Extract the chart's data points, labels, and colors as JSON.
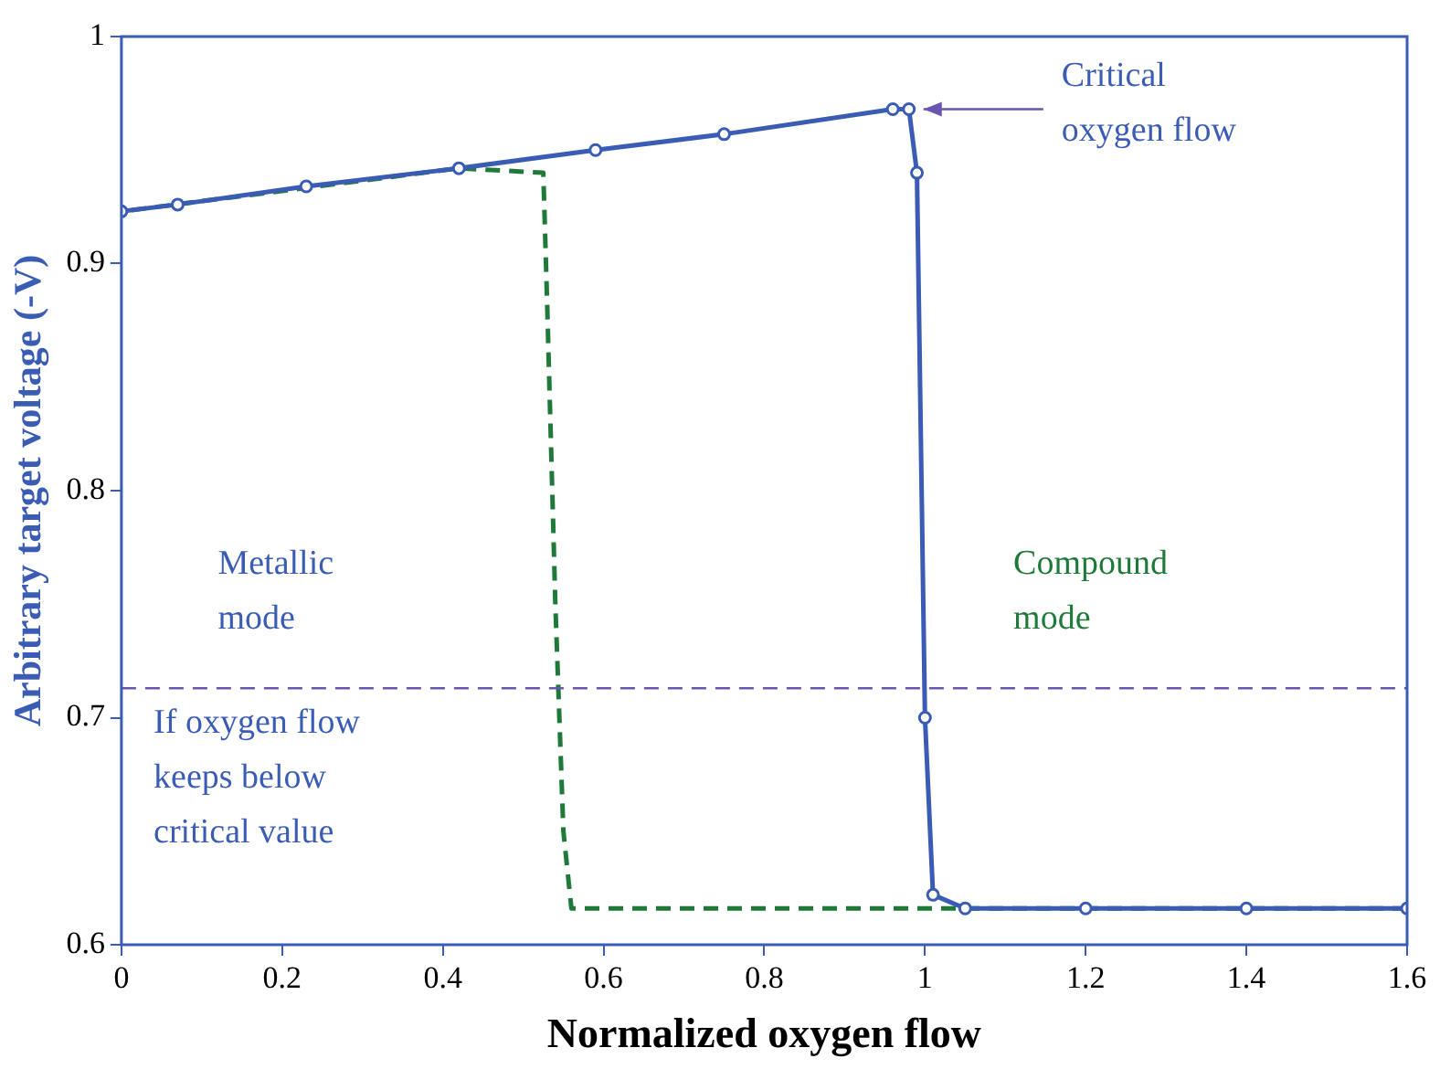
{
  "chart_data": {
    "type": "line",
    "xlabel": "Normalized oxygen flow",
    "ylabel": "Arbitrary target voltage (-V)",
    "xlim": [
      0,
      1.6
    ],
    "xticks": [
      0,
      0.2,
      0.4,
      0.6,
      0.8,
      1,
      1.2,
      1.4,
      1.6
    ],
    "ylim": [
      0.6,
      1
    ],
    "yticks": [
      0.6,
      0.7,
      0.8,
      0.9,
      1
    ],
    "grid": false,
    "legend": false,
    "series": [
      {
        "color": "#3a5cb4",
        "marker": "circle",
        "line_style": "solid",
        "x": [
          0,
          0.07,
          0.23,
          0.42,
          0.59,
          0.75,
          0.96,
          0.98,
          0.99,
          1.0,
          1.01,
          1.05,
          1.2,
          1.4,
          1.6
        ],
        "values": [
          0.923,
          0.926,
          0.934,
          0.942,
          0.95,
          0.957,
          0.968,
          0.968,
          0.94,
          0.7,
          0.622,
          0.616,
          0.616,
          0.616,
          0.616
        ]
      },
      {
        "color": "#1f7a3a",
        "marker": "none",
        "line_style": "dashed",
        "x": [
          1.6,
          1.2,
          0.8,
          0.6,
          0.56,
          0.55,
          0.54,
          0.53,
          0.525,
          0.42,
          0.2,
          0
        ],
        "values": [
          0.616,
          0.616,
          0.616,
          0.616,
          0.616,
          0.65,
          0.75,
          0.88,
          0.94,
          0.942,
          0.932,
          0.923
        ]
      }
    ],
    "ref_lines": [
      {
        "axis": "y",
        "value": 0.713,
        "color": "#6a55b0",
        "line_style": "dashed"
      }
    ],
    "annotations": [
      {
        "text": "Critical oxygen flow",
        "x": 0.98,
        "y": 0.968
      },
      "Metallic mode",
      "If oxygen flow keeps below critical value",
      "Compound mode"
    ]
  }
}
